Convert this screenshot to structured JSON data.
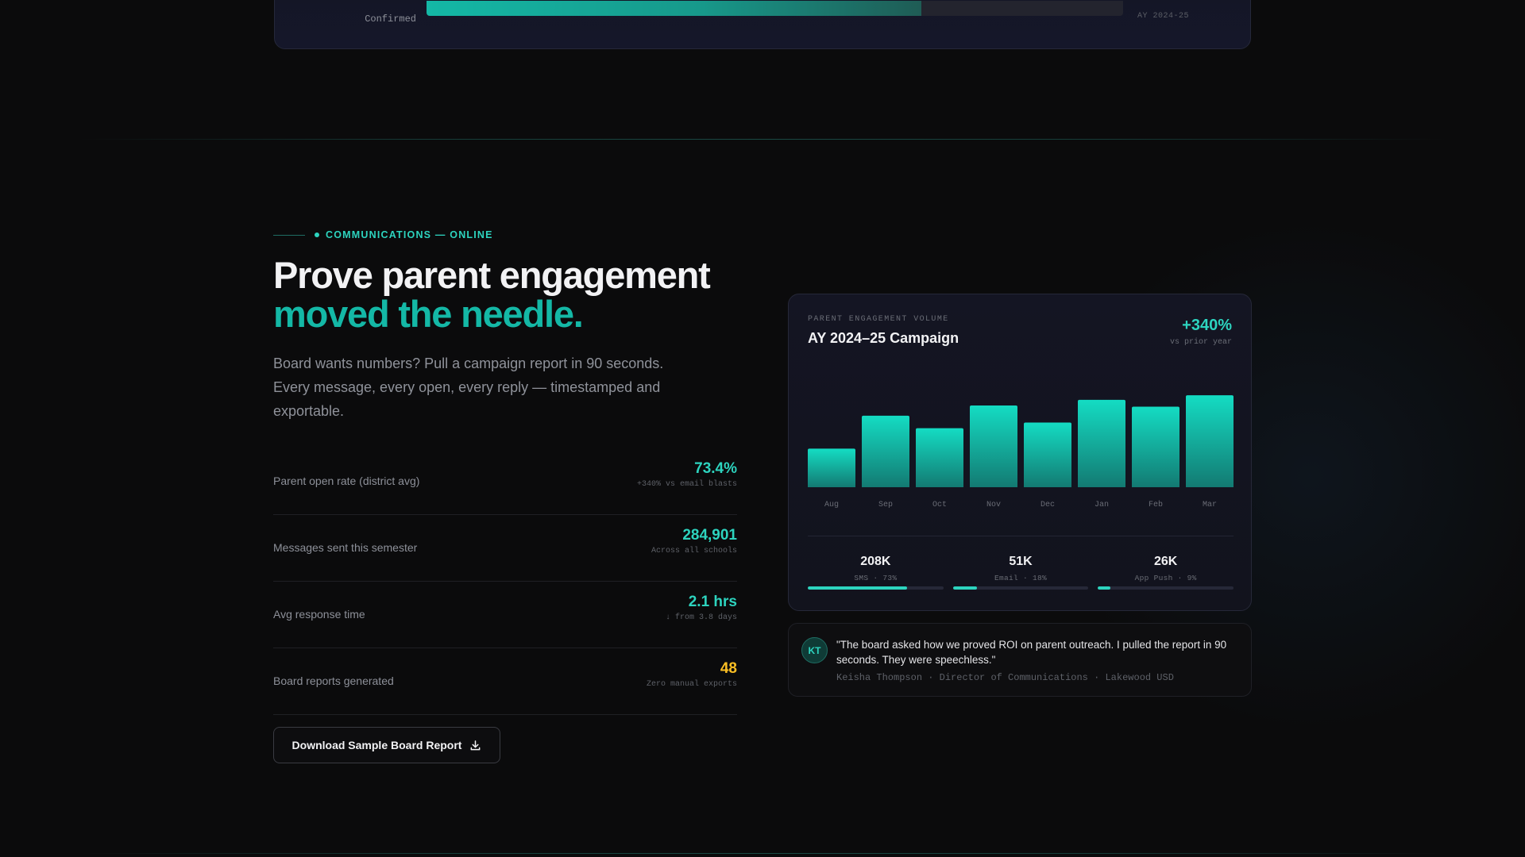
{
  "top_card": {
    "row_label": "Confirmed",
    "fill_fraction": 0.71,
    "right_caption": "AY 2024-25"
  },
  "eyebrow": "COMMUNICATIONS — ONLINE",
  "headline": {
    "line1": "Prove parent engagement",
    "line2": "moved the needle."
  },
  "lead": "Board wants numbers? Pull a campaign report in 90 seconds. Every message, every open, every reply — timestamped and exportable.",
  "stats": [
    {
      "label": "Parent open rate (district avg)",
      "value": "73.4%",
      "sub": "+340% vs email blasts"
    },
    {
      "label": "Messages sent this semester",
      "value": "284,901",
      "sub": "Across all schools"
    },
    {
      "label": "Avg response time",
      "value": "2.1 hrs",
      "sub": "↓ from 3.8 days"
    },
    {
      "label": "Board reports generated",
      "value": "48",
      "sub": "Zero manual exports"
    }
  ],
  "download_button": "Download Sample Board Report",
  "chart_card": {
    "eyebrow": "PARENT ENGAGEMENT VOLUME",
    "title": "AY 2024–25 Campaign",
    "badge": "+340%",
    "badge_sub": "vs prior year"
  },
  "chart_data": {
    "type": "bar",
    "categories": [
      "Aug",
      "Sep",
      "Oct",
      "Nov",
      "Dec",
      "Jan",
      "Feb",
      "Mar"
    ],
    "values": [
      34,
      63,
      52,
      72,
      57,
      77,
      71,
      81
    ],
    "ylim": [
      0,
      100
    ],
    "grid": false,
    "bar_color_top": "#14dcc3",
    "bar_color_bottom": "#137a72"
  },
  "channels": [
    {
      "value": "208K",
      "label": "SMS · 73%",
      "fraction": 0.73
    },
    {
      "value": "51K",
      "label": "Email · 18%",
      "fraction": 0.18
    },
    {
      "value": "26K",
      "label": "App Push · 9%",
      "fraction": 0.09
    }
  ],
  "quote": {
    "initials": "KT",
    "text": "\"The board asked how we proved ROI on parent outreach. I pulled the report in 90 seconds. They were speechless.\"",
    "author": "Keisha Thompson",
    "role": "Director of Communications",
    "org": "Lakewood USD",
    "separator": "·"
  },
  "colors": {
    "accent": "#14b8a6",
    "accent_bright": "#2dd4bf",
    "gold": "#fbbf24",
    "background": "#0b0b0c"
  }
}
